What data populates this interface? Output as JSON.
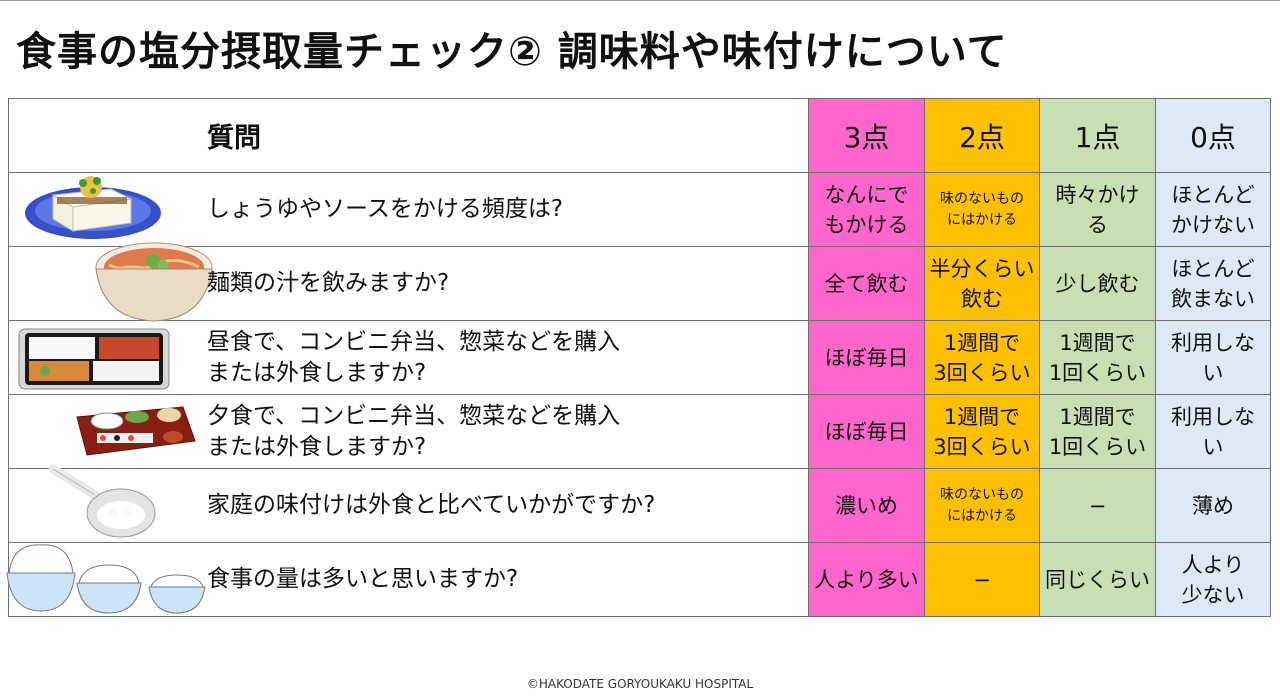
{
  "title": "食事の塩分摂取量チェック② 調味料や味付けについて",
  "table": {
    "header": {
      "question": "質問",
      "scores": [
        "3点",
        "2点",
        "1点",
        "0点"
      ]
    },
    "rows": [
      {
        "question": "しょうゆやソースをかける頻度は?",
        "answers": [
          "なんにで\nもかける",
          "味のないもの\nにはかける",
          "時々かけ\nる",
          "ほとんど\nかけない"
        ]
      },
      {
        "question": "麺類の汁を飲みますか?",
        "answers": [
          "全て飲む",
          "半分くらい\n飲む",
          "少し飲む",
          "ほとんど\n飲まない"
        ]
      },
      {
        "question": "昼食で、コンビニ弁当、惣菜などを購入\nまたは外食しますか?",
        "answers": [
          "ほぼ毎日",
          "1週間で\n3回くらい",
          "1週間で\n1回くらい",
          "利用しな\nい"
        ]
      },
      {
        "question": "夕食で、コンビニ弁当、惣菜などを購入\nまたは外食しますか?",
        "answers": [
          "ほぼ毎日",
          "1週間で\n3回くらい",
          "1週間で\n1回くらい",
          "利用しな\nい"
        ]
      },
      {
        "question": "家庭の味付けは外食と比べていかがですか?",
        "answers": [
          "濃いめ",
          "味のないもの\nにはかける",
          "−",
          "薄め"
        ]
      },
      {
        "question": "食事の量は多いと思いますか?",
        "answers": [
          "人より多い",
          "−",
          "同じくらい",
          "人より\n少ない"
        ]
      }
    ]
  },
  "illustrations": [
    "tofu-icon",
    "noodle-bowl-icon",
    "bento-box-icon",
    "japanese-meal-icon",
    "salt-spoon-icon",
    "rice-bowls-icon"
  ],
  "colors": {
    "score3": "#ff66cc",
    "score2": "#ffc000",
    "score1": "#c6e0b4",
    "score0": "#dde9f6"
  },
  "footer": "©HAKODATE GORYOUKAKU HOSPITAL"
}
